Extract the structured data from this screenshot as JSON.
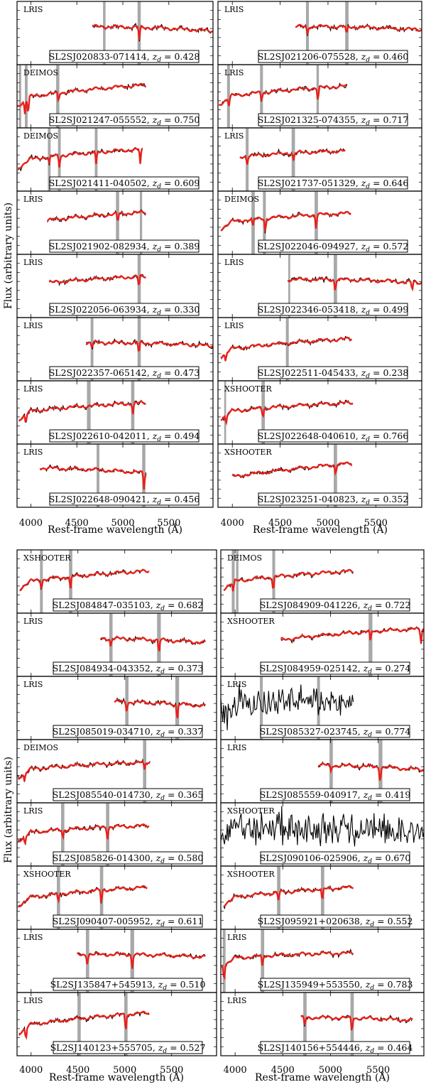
{
  "chart_data": [
    {
      "type": "line",
      "xlabel": "Rest-frame wavelength (Å)",
      "ylabel": "Flux (arbitrary units)",
      "xlim": [
        3850,
        5980
      ],
      "xticks": [
        "4000",
        "4500",
        "5000",
        "5500"
      ],
      "panels": [
        {
          "instrument": "LRIS",
          "name": "SL2SJ020833-071414",
          "zd": "0.428",
          "range": [
            4670,
            5980
          ],
          "bands": [
            [
              4785,
              4812
            ],
            [
              5160,
              5195
            ]
          ],
          "slope": 0.02,
          "dips": [
            [
              5180,
              0.5
            ]
          ]
        },
        {
          "instrument": "LRIS",
          "name": "SL2SJ021206-075528",
          "zd": "0.460",
          "range": [
            4660,
            5980
          ],
          "bands": [
            [
              4770,
              4800
            ],
            [
              5180,
              5215
            ]
          ],
          "slope": 0.05,
          "dips": [
            [
              4785,
              0.3
            ],
            [
              5195,
              0.3
            ]
          ]
        },
        {
          "instrument": "DEIMOS",
          "name": "SL2SJ021247-055552",
          "zd": "0.750",
          "range": [
            3855,
            5250
          ],
          "bands": [
            [
              3870,
              3895
            ],
            [
              3935,
              3965
            ],
            [
              4275,
              4310
            ]
          ],
          "slope": 0.35,
          "dips": [
            [
              3935,
              0.5
            ],
            [
              3970,
              0.6
            ],
            [
              4300,
              0.3
            ]
          ]
        },
        {
          "instrument": "LRIS",
          "name": "SL2SJ021325-074355",
          "zd": "0.717",
          "range": [
            3860,
            5200
          ],
          "bands": [
            [
              3945,
              3975
            ],
            [
              4290,
              4320
            ],
            [
              4880,
              4905
            ]
          ],
          "slope": 0.3,
          "dips": [
            [
              3965,
              0.3
            ],
            [
              4305,
              0.3
            ],
            [
              4895,
              0.5
            ]
          ]
        },
        {
          "instrument": "DEIMOS",
          "name": "SL2SJ021411-040502",
          "zd": "0.609",
          "range": [
            3860,
            5210
          ],
          "bands": [
            [
              4185,
              4215
            ],
            [
              4295,
              4325
            ],
            [
              4695,
              4725
            ]
          ],
          "slope": 0.3,
          "dips": [
            [
              4200,
              0.3
            ],
            [
              4310,
              0.4
            ],
            [
              4710,
              0.5
            ],
            [
              5190,
              0.6
            ]
          ]
        },
        {
          "instrument": "LRIS",
          "name": "SL2SJ021737-051329",
          "zd": "0.646",
          "range": [
            4080,
            5180
          ],
          "bands": [
            [
              4140,
              4170
            ],
            [
              4620,
              4655
            ]
          ],
          "slope": 0.2,
          "dips": [
            [
              4155,
              0.3
            ],
            [
              4640,
              0.3
            ]
          ]
        },
        {
          "instrument": "LRIS",
          "name": "SL2SJ021902-082934",
          "zd": "0.389",
          "range": [
            4180,
            5250
          ],
          "bands": [
            [
              4925,
              4960
            ],
            [
              5185,
              5210
            ]
          ],
          "slope": 0.3,
          "dips": [
            [
              4945,
              0.3
            ]
          ]
        },
        {
          "instrument": "DEIMOS",
          "name": "SL2SJ022046-094927",
          "zd": "0.572",
          "range": [
            3880,
            5240
          ],
          "bands": [
            [
              4200,
              4235
            ],
            [
              4320,
              4350
            ],
            [
              4860,
              4895
            ]
          ],
          "slope": 0.25,
          "dips": [
            [
              4215,
              0.3
            ],
            [
              4345,
              0.5
            ],
            [
              4875,
              0.5
            ]
          ]
        },
        {
          "instrument": "LRIS",
          "name": "SL2SJ022056-063934",
          "zd": "0.330",
          "range": [
            4200,
            5250
          ],
          "bands": [
            [
              5160,
              5195
            ]
          ],
          "slope": 0.25,
          "dips": [
            [
              5175,
              0.4
            ]
          ]
        },
        {
          "instrument": "LRIS",
          "name": "SL2SJ022346-053418",
          "zd": "0.499",
          "range": [
            4580,
            5980
          ],
          "bands": [
            [
              4585,
              4605
            ],
            [
              5060,
              5095
            ]
          ],
          "slope": 0.05,
          "dips": [
            [
              5075,
              0.4
            ],
            [
              5880,
              0.3
            ]
          ]
        },
        {
          "instrument": "LRIS",
          "name": "SL2SJ022357-065142",
          "zd": "0.473",
          "range": [
            4600,
            5980
          ],
          "bands": [
            [
              4650,
              4680
            ],
            [
              5160,
              5195
            ]
          ],
          "slope": 0.05,
          "dips": [
            [
              4665,
              0.2
            ],
            [
              5175,
              0.4
            ]
          ]
        },
        {
          "instrument": "LRIS",
          "name": "SL2SJ022511-045433",
          "zd": "0.238",
          "range": [
            3880,
            5250
          ],
          "bands": [
            [
              4560,
              4590
            ]
          ],
          "slope": 0.3,
          "dips": [
            [
              3930,
              0.3
            ]
          ]
        },
        {
          "instrument": "LRIS",
          "name": "SL2SJ022610-042011",
          "zd": "0.494",
          "range": [
            3870,
            5250
          ],
          "bands": [
            [
              4610,
              4650
            ],
            [
              5090,
              5125
            ]
          ],
          "slope": 0.25,
          "dips": [
            [
              3945,
              0.3
            ],
            [
              5110,
              0.4
            ]
          ]
        },
        {
          "instrument": "XSHOOTER",
          "name": "SL2SJ022648-040610",
          "zd": "0.766",
          "range": [
            3880,
            5260
          ],
          "bands": [
            [
              3915,
              3935
            ],
            [
              4305,
              4340
            ]
          ],
          "slope": 0.25,
          "dips": [
            [
              3935,
              0.3
            ],
            [
              4320,
              0.3
            ]
          ]
        },
        {
          "instrument": "LRIS",
          "name": "SL2SJ022648-090421",
          "zd": "0.456",
          "range": [
            4100,
            5250
          ],
          "bands": [
            [
              4715,
              4745
            ],
            [
              5210,
              5245
            ]
          ],
          "slope": -0.15,
          "dips": [
            [
              5230,
              0.6
            ]
          ]
        },
        {
          "instrument": "XSHOOTER",
          "name": "SL2SJ023251-040823",
          "zd": "0.352",
          "range": [
            4000,
            5250
          ],
          "bands": [
            [
              5060,
              5095
            ]
          ],
          "slope": 0.4,
          "dips": [
            [
              5080,
              0.3
            ]
          ]
        }
      ]
    },
    {
      "type": "line",
      "xlabel": "Rest-frame wavelength (Å)",
      "ylabel": "Flux (arbitrary units)",
      "xlim": [
        3850,
        5980
      ],
      "xticks": [
        "4000",
        "4500",
        "5000",
        "5500"
      ],
      "panels": [
        {
          "instrument": "XSHOOTER",
          "name": "SL2SJ084847-035103",
          "zd": "0.682",
          "range": [
            3880,
            5260
          ],
          "bands": [
            [
              4095,
              4125
            ],
            [
              4405,
              4440
            ]
          ],
          "slope": 0.3,
          "dips": [
            [
              4110,
              0.3
            ],
            [
              4420,
              0.5
            ]
          ]
        },
        {
          "instrument": "DEIMOS",
          "name": "SL2SJ084909-041226",
          "zd": "0.722",
          "range": [
            3880,
            5240
          ],
          "bands": [
            [
              3965,
              3995
            ],
            [
              4010,
              4035
            ],
            [
              4390,
              4420
            ]
          ],
          "slope": 0.3,
          "dips": [
            [
              3980,
              0.4
            ],
            [
              4400,
              0.5
            ]
          ]
        },
        {
          "instrument": "LRIS",
          "name": "SL2SJ084934-043352",
          "zd": "0.373",
          "range": [
            4740,
            5860
          ],
          "bands": [
            [
              4835,
              4870
            ],
            [
              5345,
              5385
            ]
          ],
          "slope": 0.0,
          "dips": [
            [
              4850,
              0.3
            ],
            [
              5365,
              0.5
            ]
          ]
        },
        {
          "instrument": "XSHOOTER",
          "name": "SL2SJ084959-025142",
          "zd": "0.274",
          "range": [
            4480,
            5980
          ],
          "bands": [
            [
              5400,
              5440
            ]
          ],
          "slope": 0.4,
          "dips": [
            [
              5420,
              0.4
            ],
            [
              5950,
              0.5
            ]
          ]
        },
        {
          "instrument": "LRIS",
          "name": "SL2SJ085019-034710",
          "zd": "0.337",
          "range": [
            4890,
            5860
          ],
          "bands": [
            [
              5005,
              5040
            ],
            [
              5540,
              5580
            ]
          ],
          "slope": 0.0,
          "dips": [
            [
              5020,
              0.3
            ],
            [
              5560,
              0.6
            ]
          ]
        },
        {
          "instrument": "LRIS",
          "name": "SL2SJ085327-023745",
          "zd": "0.774",
          "range": [
            3850,
            5240
          ],
          "bands": [
            [
              4260,
              4290
            ],
            [
              4860,
              4890
            ]
          ],
          "slope": 0.0,
          "dips": [
            [
              4275,
              0.3
            ],
            [
              4875,
              0.6
            ]
          ]
        },
        {
          "instrument": "DEIMOS",
          "name": "SL2SJ085540-014730",
          "zd": "0.365",
          "range": [
            3860,
            5270
          ],
          "bands": [
            [
              5195,
              5230
            ]
          ],
          "slope": 0.2,
          "dips": [
            [
              3930,
              0.3
            ],
            [
              5210,
              0.3
            ]
          ]
        },
        {
          "instrument": "LRIS",
          "name": "SL2SJ085559-040917",
          "zd": "0.419",
          "range": [
            4870,
            5980
          ],
          "bands": [
            [
              4990,
              5025
            ],
            [
              5505,
              5545
            ]
          ],
          "slope": 0.0,
          "dips": [
            [
              5005,
              0.2
            ],
            [
              5520,
              0.5
            ]
          ]
        },
        {
          "instrument": "LRIS",
          "name": "SL2SJ085826-014300",
          "zd": "0.580",
          "range": [
            3860,
            5260
          ],
          "bands": [
            [
              4320,
              4355
            ],
            [
              4800,
              4835
            ]
          ],
          "slope": 0.2,
          "dips": [
            [
              3935,
              0.3
            ],
            [
              4340,
              0.3
            ],
            [
              4815,
              0.4
            ]
          ]
        },
        {
          "instrument": "XSHOOTER",
          "name": "SL2SJ090106-025906",
          "zd": "0.670",
          "range": [
            3850,
            5980
          ],
          "bands": [],
          "slope": 0.0,
          "dips": []
        },
        {
          "instrument": "XSHOOTER",
          "name": "SL2SJ090407-005952",
          "zd": "0.611",
          "range": [
            3860,
            5240
          ],
          "bands": [
            [
              4275,
              4310
            ],
            [
              4735,
              4770
            ]
          ],
          "slope": 0.3,
          "dips": [
            [
              4290,
              0.3
            ],
            [
              4750,
              0.5
            ]
          ]
        },
        {
          "instrument": "XSHOOTER",
          "name": "SL2SJ095921+020638",
          "zd": "0.552",
          "range": [
            3880,
            5240
          ],
          "bands": [
            [
              4440,
              4475
            ],
            [
              4900,
              4935
            ]
          ],
          "slope": 0.3,
          "dips": [
            [
              4455,
              0.3
            ],
            [
              4915,
              0.5
            ]
          ]
        },
        {
          "instrument": "LRIS",
          "name": "SL2SJ135847+545913",
          "zd": "0.510",
          "range": [
            4490,
            5860
          ],
          "bands": [
            [
              4585,
              4620
            ],
            [
              5060,
              5100
            ]
          ],
          "slope": 0.05,
          "dips": [
            [
              4600,
              0.3
            ],
            [
              5080,
              0.5
            ]
          ]
        },
        {
          "instrument": "LRIS",
          "name": "SL2SJ135949+553550",
          "zd": "0.783",
          "range": [
            3860,
            5240
          ],
          "bands": [
            [
              3870,
              3900
            ],
            [
              4270,
              4305
            ]
          ],
          "slope": 0.15,
          "dips": [
            [
              3885,
              0.5
            ],
            [
              4285,
              0.4
            ]
          ]
        },
        {
          "instrument": "LRIS",
          "name": "SL2SJ140123+555705",
          "zd": "0.527",
          "range": [
            3870,
            5260
          ],
          "bands": [
            [
              4495,
              4530
            ],
            [
              4995,
              5030
            ]
          ],
          "slope": 0.35,
          "dips": [
            [
              3945,
              0.4
            ],
            [
              5010,
              0.6
            ]
          ]
        },
        {
          "instrument": "LRIS",
          "name": "SL2SJ140156+554446",
          "zd": "0.464",
          "range": [
            4690,
            5860
          ],
          "bands": [
            [
              4715,
              4750
            ],
            [
              5210,
              5245
            ]
          ],
          "slope": 0.05,
          "dips": [
            [
              4730,
              0.3
            ],
            [
              5225,
              0.5
            ]
          ]
        }
      ]
    }
  ],
  "colors": {
    "data": "#000000",
    "model": "#e8211b",
    "band": "#a8a8a8",
    "frame": "#000000"
  }
}
